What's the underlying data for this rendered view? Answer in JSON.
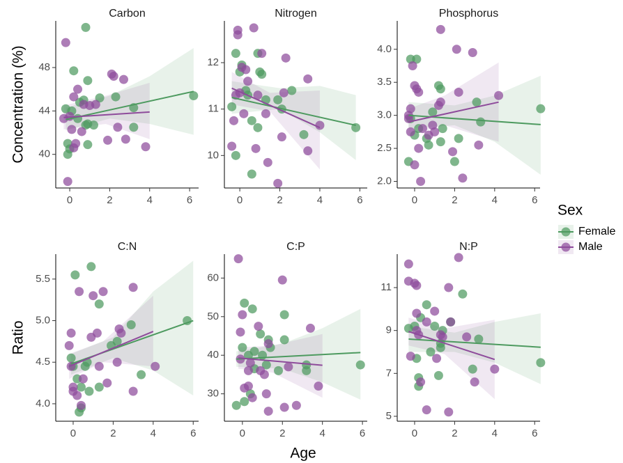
{
  "y_labels": [
    "Concentration (%)",
    "Ratio"
  ],
  "x_label": "Age",
  "legend": {
    "title": "Sex"
  },
  "chart_data": [
    {
      "type": "scatter",
      "title": "Carbon",
      "xlim": [
        -0.7,
        6.45
      ],
      "ylim": [
        36.9,
        52.3
      ],
      "xticks": [
        0,
        2,
        4,
        6
      ],
      "yticks": [
        40,
        44,
        48
      ],
      "series": [
        {
          "name": "Female",
          "color": "#4d9a5f",
          "x": [
            -0.2,
            -0.1,
            0,
            0.1,
            0.2,
            0.5,
            0.7,
            0.8,
            0.9,
            0.8,
            0.9,
            0.9,
            1.2,
            1.5,
            2.3,
            3.2,
            3.2,
            6.2,
            -0.1,
            0.4
          ],
          "values": [
            44.2,
            41,
            40.5,
            44,
            47.7,
            44.8,
            45,
            42.7,
            42.8,
            51.7,
            46.8,
            40.9,
            42.7,
            45.2,
            45.3,
            42.5,
            44.3,
            45.4,
            40,
            43.3
          ],
          "fit": {
            "x": [
              -0.2,
              6.2
            ],
            "values": [
              43.2,
              45.8
            ]
          },
          "band": {
            "x": [
              -0.2,
              2,
              4,
              6.2
            ],
            "lower": [
              42.2,
              43.3,
              42.8,
              41.8
            ],
            "upper": [
              44.3,
              45.4,
              47.2,
              49.8
            ]
          }
        },
        {
          "name": "Male",
          "color": "#8e4b9b",
          "x": [
            -0.3,
            -0.2,
            -0.1,
            0,
            0.1,
            0.2,
            0.3,
            0.4,
            0.6,
            0.7,
            1,
            1.3,
            1.9,
            2.1,
            2.2,
            2.4,
            2.7,
            2.8,
            3.8,
            0.2
          ],
          "values": [
            43.3,
            50.3,
            37.5,
            43.5,
            42.3,
            45.3,
            41,
            46,
            42.1,
            44.6,
            44.5,
            44.6,
            41.3,
            47.4,
            47.2,
            42.5,
            46.9,
            41.4,
            40.7,
            40.6
          ],
          "fit": {
            "x": [
              -0.3,
              4
            ],
            "values": [
              43.4,
              43.9
            ]
          },
          "band": {
            "x": [
              -0.3,
              1.8,
              4
            ],
            "lower": [
              42.3,
              42.8,
              41.4
            ],
            "upper": [
              44.5,
              45.4,
              46.6
            ]
          }
        }
      ]
    },
    {
      "type": "scatter",
      "title": "Nitrogen",
      "xlim": [
        -0.77,
        6.37
      ],
      "ylim": [
        9.3,
        12.9
      ],
      "xticks": [
        0,
        2,
        4,
        6
      ],
      "yticks": [
        10,
        11,
        12
      ],
      "series": [
        {
          "name": "Female",
          "color": "#4d9a5f",
          "x": [
            -0.4,
            -0.2,
            -0.2,
            0,
            0.1,
            0.3,
            0.6,
            0.6,
            0.9,
            0.9,
            1,
            1.1,
            1.3,
            1.9,
            2.1,
            2.6,
            3.2,
            5.8,
            0.4
          ],
          "values": [
            11.05,
            12.2,
            10,
            11.8,
            11.95,
            11.4,
            10.75,
            9.6,
            12.2,
            10.6,
            11.8,
            11.75,
            11.2,
            11.2,
            11,
            11.4,
            10.45,
            10.6,
            11.3
          ],
          "fit": {
            "x": [
              -0.4,
              5.8
            ],
            "values": [
              11.25,
              10.65
            ]
          },
          "band": {
            "x": [
              -0.4,
              2,
              4,
              5.8
            ],
            "lower": [
              10.9,
              11,
              10.5,
              9.9
            ],
            "upper": [
              11.6,
              11.45,
              11.5,
              11.3
            ]
          }
        },
        {
          "name": "Male",
          "color": "#8e4b9b",
          "x": [
            -0.4,
            -0.3,
            -0.2,
            -0.1,
            -0.1,
            0,
            0.1,
            0.2,
            0.3,
            0.4,
            0.7,
            0.8,
            0.9,
            1.1,
            1.3,
            1.4,
            1.9,
            2.1,
            2.2,
            2.3,
            3.4,
            3.4,
            4
          ],
          "values": [
            10.2,
            10.75,
            11.3,
            12.6,
            12.7,
            11.35,
            11.9,
            10.9,
            11.85,
            11.6,
            12.75,
            10.15,
            11.3,
            12.2,
            10.9,
            9.85,
            9.4,
            10.4,
            11.35,
            12.1,
            11.65,
            10.1,
            10.65
          ],
          "fit": {
            "x": [
              -0.4,
              4
            ],
            "values": [
              11.45,
              10.6
            ]
          },
          "band": {
            "x": [
              -0.4,
              1.5,
              4
            ],
            "lower": [
              11.1,
              10.95,
              9.7
            ],
            "upper": [
              11.8,
              11.35,
              11.4
            ]
          }
        }
      ]
    },
    {
      "type": "scatter",
      "title": "Phosphorus",
      "xlim": [
        -0.87,
        6.27
      ],
      "ylim": [
        1.9,
        4.43
      ],
      "xticks": [
        0,
        2,
        4,
        6
      ],
      "yticks": [
        {
          "value": 2,
          "label": "2.0"
        },
        2.5,
        {
          "value": 3,
          "label": "3.0"
        },
        3.5,
        {
          "value": 4,
          "label": "4.0"
        }
      ],
      "series": [
        {
          "name": "Female",
          "color": "#4d9a5f",
          "x": [
            -0.3,
            -0.2,
            -0.2,
            0,
            0.1,
            0.2,
            0.6,
            0.7,
            0.9,
            1.2,
            1.3,
            1.3,
            1.4,
            2,
            2.2,
            3.1,
            3.3,
            6.3
          ],
          "values": [
            2.3,
            3.85,
            2.95,
            2.7,
            3.85,
            2.8,
            2.65,
            2.55,
            3.05,
            3.45,
            3.4,
            2.6,
            2.8,
            2.3,
            2.65,
            3.2,
            2.9,
            3.1
          ],
          "fit": {
            "x": [
              -0.3,
              6.3
            ],
            "values": [
              3.0,
              2.86
            ]
          },
          "band": {
            "x": [
              -0.3,
              2,
              4,
              6.3
            ],
            "lower": [
              2.8,
              2.85,
              2.6,
              2.1
            ],
            "upper": [
              3.2,
              3.15,
              3.3,
              3.6
            ]
          }
        },
        {
          "name": "Male",
          "color": "#8e4b9b",
          "x": [
            -0.3,
            -0.3,
            -0.2,
            -0.1,
            0,
            0,
            0.1,
            0.2,
            0.2,
            0.3,
            0.4,
            0.7,
            0.9,
            1,
            1.2,
            1.3,
            1.3,
            1.9,
            2.1,
            2.2,
            2.4,
            2.9,
            3.2,
            4.2,
            -0.2
          ],
          "values": [
            2.95,
            3.0,
            3.1,
            3.75,
            3.45,
            2.25,
            3.4,
            3.35,
            2.5,
            2,
            2.8,
            2.7,
            2.85,
            2.75,
            3.15,
            4.3,
            3.2,
            2.45,
            4,
            3.35,
            2.05,
            3.95,
            2.55,
            3.3,
            2.75
          ],
          "fit": {
            "x": [
              -0.3,
              4.2
            ],
            "values": [
              2.9,
              3.2
            ]
          },
          "band": {
            "x": [
              -0.3,
              1.5,
              4.2
            ],
            "lower": [
              2.7,
              2.85,
              2.6
            ],
            "upper": [
              3.1,
              3.3,
              3.8
            ]
          }
        }
      ]
    },
    {
      "type": "scatter",
      "title": "C:N",
      "xlim": [
        -0.87,
        6.27
      ],
      "ylim": [
        3.79,
        5.8
      ],
      "xticks": [
        0,
        2,
        4,
        6
      ],
      "yticks": [
        {
          "value": 4,
          "label": "4.0"
        },
        4.5,
        {
          "value": 5,
          "label": "5.0"
        },
        5.5
      ],
      "series": [
        {
          "name": "Female",
          "color": "#4d9a5f",
          "x": [
            -0.1,
            0,
            0.1,
            0.2,
            0.4,
            0.4,
            0.6,
            0.7,
            0.8,
            0.9,
            1.3,
            1.3,
            1.9,
            2.2,
            2.9,
            3.4,
            5.7,
            0.3
          ],
          "values": [
            4.55,
            4.45,
            5.55,
            4.3,
            3.95,
            4.2,
            4.45,
            4.5,
            4.15,
            5.65,
            5.2,
            4.2,
            4.7,
            4.75,
            4.95,
            4.35,
            5.0,
            3.9
          ],
          "fit": {
            "x": [
              -0.1,
              6
            ],
            "values": [
              4.48,
              5.0
            ]
          },
          "band": {
            "x": [
              -0.1,
              2,
              4,
              6
            ],
            "lower": [
              4.35,
              4.55,
              4.4,
              4.1
            ],
            "upper": [
              4.6,
              4.8,
              5.35,
              5.72
            ]
          }
        },
        {
          "name": "Male",
          "color": "#8e4b9b",
          "x": [
            -0.2,
            -0.1,
            0,
            0,
            0.2,
            0.3,
            0.4,
            0.5,
            0.9,
            1,
            1.2,
            1.3,
            1.5,
            1.7,
            2.2,
            2.3,
            2.4,
            3,
            3,
            4.1,
            -0.1
          ],
          "values": [
            4.7,
            4.85,
            4.2,
            4.15,
            4.1,
            5.35,
            3.98,
            4.3,
            4.8,
            5.3,
            4.85,
            4.45,
            5.35,
            4.25,
            4.5,
            4.9,
            4.85,
            5.4,
            4.15,
            4.45,
            4.45
          ],
          "fit": {
            "x": [
              -0.2,
              4
            ],
            "values": [
              4.45,
              4.87
            ]
          },
          "band": {
            "x": [
              -0.2,
              1.5,
              4
            ],
            "lower": [
              4.3,
              4.5,
              4.45
            ],
            "upper": [
              4.6,
              4.75,
              5.3
            ]
          }
        }
      ]
    },
    {
      "type": "scatter",
      "title": "C:P",
      "xlim": [
        -0.9,
        6.24
      ],
      "ylim": [
        22.9,
        66.2
      ],
      "xticks": [
        0,
        2,
        4,
        6
      ],
      "yticks": [
        30,
        40,
        50,
        60
      ],
      "series": [
        {
          "name": "Female",
          "color": "#4d9a5f",
          "x": [
            -0.3,
            0,
            0.1,
            0.3,
            0.4,
            0.5,
            0.6,
            0.6,
            0.9,
            1,
            1.2,
            1.3,
            1.4,
            1.8,
            2.1,
            2.1,
            3.2,
            3.2,
            5.9,
            0.1
          ],
          "values": [
            27,
            42,
            53.5,
            40,
            30,
            52,
            36.5,
            41,
            45.5,
            40,
            37.5,
            44,
            42,
            36,
            50.5,
            44,
            36,
            37.5,
            37.5,
            28
          ],
          "fit": {
            "x": [
              -0.3,
              5.9
            ],
            "values": [
              39,
              40.7
            ]
          },
          "band": {
            "x": [
              -0.3,
              2,
              4,
              5.9
            ],
            "lower": [
              37,
              36.5,
              33,
              28.5
            ],
            "upper": [
              41,
              43,
              47,
              52
            ]
          }
        },
        {
          "name": "Male",
          "color": "#8e4b9b",
          "x": [
            -0.2,
            -0.1,
            -0.1,
            0,
            0.1,
            0.3,
            0.3,
            0.5,
            0.8,
            0.9,
            1.1,
            1.2,
            1.3,
            1.3,
            2,
            2.1,
            2.3,
            2.7,
            3.4,
            3.8,
            0.4
          ],
          "values": [
            65,
            39,
            46,
            50.5,
            31.5,
            36,
            32,
            29,
            47.5,
            36,
            35,
            30,
            43,
            25.5,
            59.5,
            26.5,
            37,
            27,
            47,
            32,
            38
          ],
          "fit": {
            "x": [
              -0.2,
              4
            ],
            "values": [
              39.3,
              37.4
            ]
          },
          "band": {
            "x": [
              -0.2,
              1.5,
              4
            ],
            "lower": [
              36.5,
              35.5,
              29
            ],
            "upper": [
              42,
              42.5,
              45.5
            ]
          }
        }
      ]
    },
    {
      "type": "scatter",
      "title": "N:P",
      "xlim": [
        -0.87,
        6.27
      ],
      "ylim": [
        4.77,
        12.56
      ],
      "xticks": [
        0,
        2,
        4,
        6
      ],
      "yticks": [
        5,
        7,
        9,
        11
      ],
      "series": [
        {
          "name": "Female",
          "color": "#4d9a5f",
          "x": [
            -0.3,
            0,
            0.1,
            0.2,
            0.2,
            0.3,
            0.6,
            0.8,
            1,
            1.2,
            1.3,
            1.3,
            1.8,
            2.4,
            2.9,
            3.2,
            6.3,
            1.4
          ],
          "values": [
            9.1,
            9.2,
            7.7,
            6.8,
            6.4,
            9.6,
            10.2,
            8,
            9.2,
            6.9,
            8.4,
            8.2,
            9.4,
            10.7,
            7.2,
            8.6,
            7.5,
            9.0
          ],
          "fit": {
            "x": [
              -0.3,
              6.3
            ],
            "values": [
              8.6,
              8.22
            ]
          },
          "band": {
            "x": [
              -0.3,
              2,
              4,
              6.3
            ],
            "lower": [
              8.0,
              8.0,
              7.5,
              6.5
            ],
            "upper": [
              9.2,
              8.9,
              9.4,
              9.8
            ]
          }
        },
        {
          "name": "Male",
          "color": "#8e4b9b",
          "x": [
            -0.3,
            -0.3,
            -0.2,
            0,
            0.1,
            0.1,
            0.2,
            0.3,
            0.6,
            0.6,
            1,
            1.1,
            1.3,
            1.4,
            1.7,
            1.7,
            1.8,
            2.2,
            2.6,
            3,
            4,
            0.1
          ],
          "values": [
            12.1,
            11.3,
            7.8,
            11.2,
            11.1,
            9.8,
            8.8,
            6.6,
            5.3,
            9.4,
            9.9,
            7.7,
            8.8,
            8.7,
            5.2,
            11,
            9.4,
            12.4,
            8.7,
            6.6,
            7.2,
            9.0
          ],
          "fit": {
            "x": [
              -0.3,
              4
            ],
            "values": [
              8.95,
              7.65
            ]
          },
          "band": {
            "x": [
              -0.3,
              1.5,
              4
            ],
            "lower": [
              8.3,
              7.9,
              5.8
            ],
            "upper": [
              9.6,
              9.1,
              9.5
            ]
          }
        }
      ]
    }
  ]
}
